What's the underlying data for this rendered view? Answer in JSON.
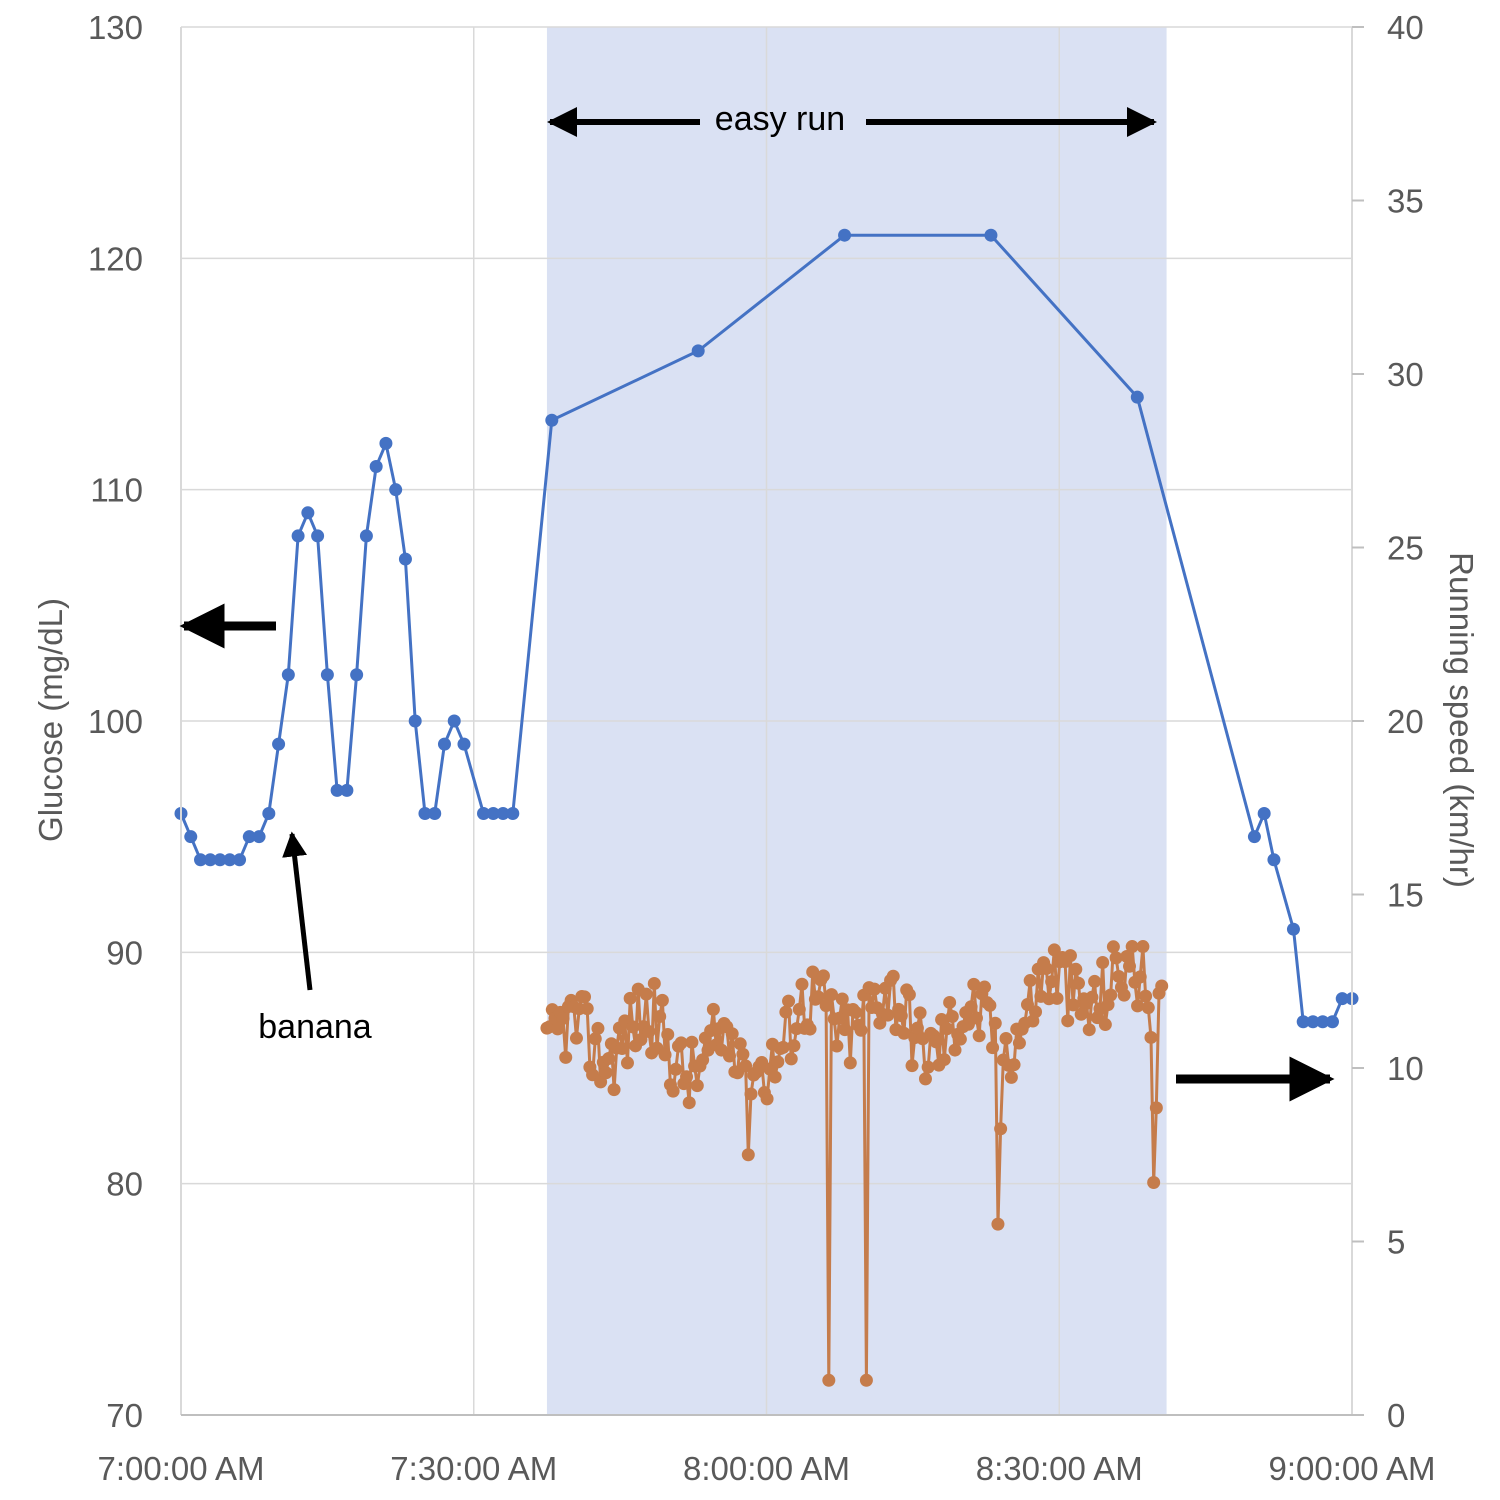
{
  "chart_data": {
    "type": "line",
    "x_unit": "minutes",
    "x_range": [
      "7:00:00 AM",
      "9:00:00 AM"
    ],
    "x_ticks": [
      {
        "value": "7:00:00 AM",
        "label": "7:00:00 AM"
      },
      {
        "value": "7:30:00 AM",
        "label": "7:30:00 AM"
      },
      {
        "value": "8:00:00 AM",
        "label": "8:00:00 AM"
      },
      {
        "value": "8:30:00 AM",
        "label": "8:30:00 AM"
      },
      {
        "value": "9:00:00 AM",
        "label": "9:00:00 AM"
      }
    ],
    "y_left": {
      "label": "Glucose (mg/dL)",
      "range": [
        70,
        130
      ],
      "ticks": [
        "70",
        "80",
        "90",
        "100",
        "110",
        "120",
        "130"
      ]
    },
    "y_right": {
      "label": "Running speed (km/hr)",
      "range": [
        0,
        40
      ],
      "ticks": [
        "0",
        "5",
        "10",
        "15",
        "20",
        "25",
        "30",
        "35",
        "40"
      ]
    },
    "grid": true,
    "shaded_region": {
      "from": "7:37:30 AM",
      "to": "8:41:00 AM",
      "color": "#dae1f3"
    },
    "series": [
      {
        "axis": "left",
        "color": "#4472c4",
        "x": [
          "7:00:00 AM",
          "7:01:00 AM",
          "7:02:00 AM",
          "7:03:00 AM",
          "7:04:00 AM",
          "7:05:00 AM",
          "7:06:00 AM",
          "7:07:00 AM",
          "7:08:00 AM",
          "7:09:00 AM",
          "7:10:00 AM",
          "7:11:00 AM",
          "7:12:00 AM",
          "7:13:00 AM",
          "7:14:00 AM",
          "7:15:00 AM",
          "7:16:00 AM",
          "7:17:00 AM",
          "7:18:00 AM",
          "7:19:00 AM",
          "7:20:00 AM",
          "7:21:00 AM",
          "7:22:00 AM",
          "7:23:00 AM",
          "7:24:00 AM",
          "7:25:00 AM",
          "7:26:00 AM",
          "7:27:00 AM",
          "7:28:00 AM",
          "7:29:00 AM",
          "7:31:00 AM",
          "7:32:00 AM",
          "7:33:00 AM",
          "7:34:00 AM",
          "7:38:00 AM",
          "7:53:00 AM",
          "8:08:00 AM",
          "8:23:00 AM",
          "8:38:00 AM",
          "8:50:00 AM",
          "8:51:00 AM",
          "8:52:00 AM",
          "8:54:00 AM",
          "8:55:00 AM",
          "8:56:00 AM",
          "8:57:00 AM",
          "8:58:00 AM",
          "8:59:00 AM",
          "9:00:00 AM"
        ],
        "y": [
          96,
          95,
          94,
          94,
          94,
          94,
          94,
          95,
          95,
          96,
          99,
          102,
          108,
          109,
          108,
          102,
          97,
          97,
          102,
          108,
          111,
          112,
          110,
          107,
          100,
          96,
          96,
          99,
          100,
          99,
          96,
          96,
          96,
          96,
          113,
          116,
          121,
          121,
          114,
          95,
          96,
          94,
          91,
          87,
          87,
          87,
          87,
          88,
          88
        ]
      },
      {
        "axis": "right",
        "color": "#c57c4b",
        "x_range": [
          "7:37:30 AM",
          "8:40:30 AM"
        ],
        "typical_range": [
          9,
          13.5
        ],
        "dropouts": [
          {
            "x": "8:06:20 AM",
            "y": 1.0
          },
          {
            "x": "8:10:10 AM",
            "y": 1.0
          }
        ],
        "dips": [
          {
            "x": "7:58:00 AM",
            "y": 7.5
          },
          {
            "x": "8:23:40 AM",
            "y": 5.5
          },
          {
            "x": "8:39:40 AM",
            "y": 6.7
          }
        ]
      }
    ],
    "annotations": {
      "easy_run": "easy run",
      "banana": "banana"
    }
  }
}
